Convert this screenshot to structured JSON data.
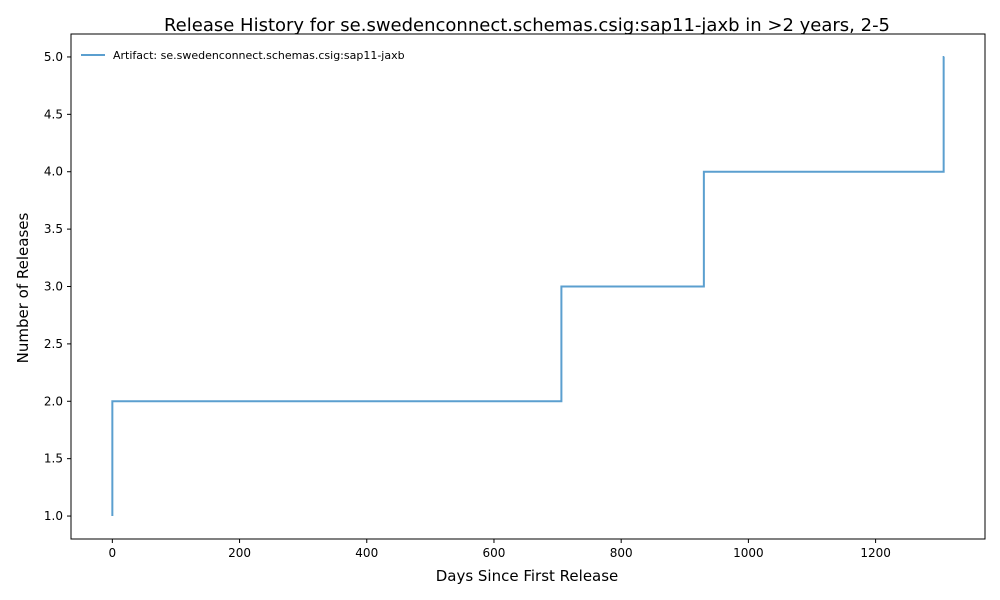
{
  "chart_data": {
    "type": "line",
    "drawstyle": "steps-post",
    "title": "Release History for se.swedenconnect.schemas.csig:sap11-jaxb in >2 years, 2-5",
    "xlabel": "Days Since First Release",
    "ylabel": "Number of Releases",
    "xlim": [
      -65,
      1372
    ],
    "ylim": [
      0.8,
      5.2
    ],
    "x_ticks": [
      0,
      200,
      400,
      600,
      800,
      1000,
      1200
    ],
    "y_ticks": [
      1.0,
      1.5,
      2.0,
      2.5,
      3.0,
      3.5,
      4.0,
      4.5,
      5.0
    ],
    "x_tick_labels": [
      "0",
      "200",
      "400",
      "600",
      "800",
      "1000",
      "1200"
    ],
    "y_tick_labels": [
      "1.0",
      "1.5",
      "2.0",
      "2.5",
      "3.0",
      "3.5",
      "4.0",
      "4.5",
      "5.0"
    ],
    "grid": false,
    "legend_position": "top-left",
    "series": [
      {
        "name": "Artifact: se.swedenconnect.schemas.csig:sap11-jaxb",
        "color": "#5b9fcf",
        "x": [
          0,
          0,
          706,
          930,
          1307,
          1308
        ],
        "y": [
          1,
          2,
          3,
          4,
          5,
          5
        ]
      }
    ]
  }
}
